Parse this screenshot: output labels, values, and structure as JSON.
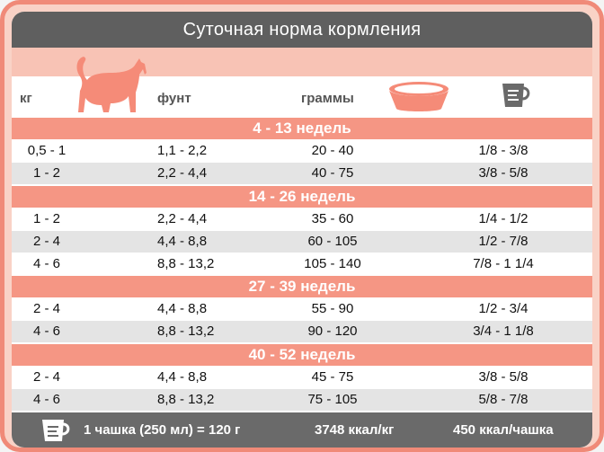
{
  "title": "Суточная норма кормления",
  "headers": {
    "kg": "кг",
    "lb": "фунт",
    "grams": "граммы"
  },
  "icons": {
    "cat": "cat-icon",
    "bowl": "food-bowl-icon",
    "cup": "measuring-cup-icon"
  },
  "colors": {
    "accent": "#f59684",
    "frame": "#f08a78",
    "dark": "#5f5f5f",
    "band": "#f8c3b5",
    "alt_row": "#e4e4e4"
  },
  "sections": [
    {
      "label": "4 - 13 недель",
      "rows": [
        {
          "kg": "0,5 - 1",
          "lb": "1,1 - 2,2",
          "grams": "20 - 40",
          "cups": "1/8 - 3/8"
        },
        {
          "kg": "1 - 2",
          "lb": "2,2 - 4,4",
          "grams": "40 - 75",
          "cups": "3/8 - 5/8"
        }
      ]
    },
    {
      "label": "14 - 26 недель",
      "rows": [
        {
          "kg": "1 - 2",
          "lb": "2,2 - 4,4",
          "grams": "35 - 60",
          "cups": "1/4 - 1/2"
        },
        {
          "kg": "2 - 4",
          "lb": "4,4 - 8,8",
          "grams": "60 - 105",
          "cups": "1/2 - 7/8"
        },
        {
          "kg": "4 - 6",
          "lb": "8,8 - 13,2",
          "grams": "105 - 140",
          "cups": "7/8 - 1 1/4"
        }
      ]
    },
    {
      "label": "27 - 39 недель",
      "rows": [
        {
          "kg": "2 - 4",
          "lb": "4,4 - 8,8",
          "grams": "55 - 90",
          "cups": "1/2 - 3/4"
        },
        {
          "kg": "4 - 6",
          "lb": "8,8 - 13,2",
          "grams": "90 - 120",
          "cups": "3/4 - 1 1/8"
        }
      ]
    },
    {
      "label": "40 - 52 недель",
      "rows": [
        {
          "kg": "2 - 4",
          "lb": "4,4 - 8,8",
          "grams": "45 - 75",
          "cups": "3/8 - 5/8"
        },
        {
          "kg": "4 - 6",
          "lb": "8,8 - 13,2",
          "grams": "75 - 105",
          "cups": "5/8 - 7/8"
        }
      ]
    }
  ],
  "footer": {
    "cup": "1 чашка (250 мл) = 120 г",
    "energy_kg": "3748 ккал/кг",
    "energy_cup": "450 ккал/чашка"
  }
}
